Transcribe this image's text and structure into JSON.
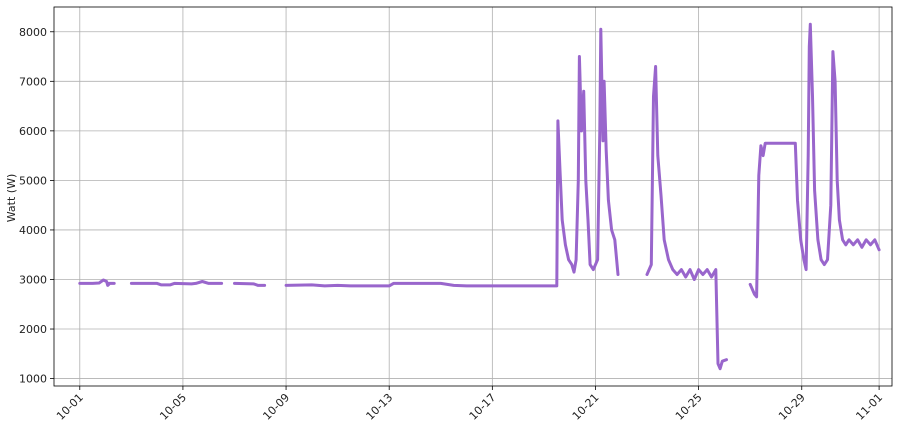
{
  "chart_data": {
    "type": "line",
    "ylabel": "Watt (W)",
    "xlabel": "",
    "title": "",
    "grid": true,
    "line_color": "#9966cc",
    "x_ticks": [
      "10-01",
      "10-05",
      "10-09",
      "10-13",
      "10-17",
      "10-21",
      "10-25",
      "10-29",
      "11-01"
    ],
    "y_ticks": [
      1000,
      2000,
      3000,
      4000,
      5000,
      6000,
      7000,
      8000
    ],
    "xlim": [
      "2023-09-30T00:00",
      "2023-11-01T12:00"
    ],
    "ylim": [
      850,
      8500
    ],
    "segments": [
      [
        [
          "2023-10-01T00:00",
          2920
        ],
        [
          "2023-10-01T12:00",
          2920
        ],
        [
          "2023-10-01T18:00",
          2930
        ],
        [
          "2023-10-01T22:00",
          2990
        ],
        [
          "2023-10-02T01:00",
          2960
        ],
        [
          "2023-10-02T02:00",
          2880
        ],
        [
          "2023-10-02T03:00",
          2900
        ]
      ],
      [
        [
          "2023-10-02T03:00",
          2920
        ],
        [
          "2023-10-02T08:00",
          2920
        ]
      ],
      [
        [
          "2023-10-03T00:00",
          2920
        ],
        [
          "2023-10-04T00:00",
          2920
        ],
        [
          "2023-10-04T04:00",
          2890
        ],
        [
          "2023-10-04T12:00",
          2890
        ],
        [
          "2023-10-04T16:00",
          2920
        ],
        [
          "2023-10-05T08:00",
          2910
        ],
        [
          "2023-10-05T12:00",
          2920
        ],
        [
          "2023-10-05T18:00",
          2960
        ],
        [
          "2023-10-06T00:00",
          2920
        ],
        [
          "2023-10-06T12:00",
          2920
        ]
      ],
      [
        [
          "2023-10-07T00:00",
          2920
        ],
        [
          "2023-10-07T18:00",
          2910
        ],
        [
          "2023-10-07T22:00",
          2880
        ],
        [
          "2023-10-08T04:00",
          2880
        ]
      ],
      [
        [
          "2023-10-09T00:00",
          2880
        ],
        [
          "2023-10-10T00:00",
          2890
        ],
        [
          "2023-10-10T12:00",
          2870
        ],
        [
          "2023-10-11T00:00",
          2880
        ],
        [
          "2023-10-11T12:00",
          2870
        ],
        [
          "2023-10-13T00:00",
          2870
        ],
        [
          "2023-10-13T04:00",
          2920
        ],
        [
          "2023-10-14T12:00",
          2920
        ],
        [
          "2023-10-15T00:00",
          2920
        ],
        [
          "2023-10-15T12:00",
          2880
        ],
        [
          "2023-10-16T00:00",
          2870
        ],
        [
          "2023-10-19T00:00",
          2870
        ],
        [
          "2023-10-19T12:00",
          2870
        ],
        [
          "2023-10-19T13:00",
          6200
        ],
        [
          "2023-10-19T15:00",
          5200
        ],
        [
          "2023-10-19T17:00",
          4200
        ],
        [
          "2023-10-19T20:00",
          3700
        ],
        [
          "2023-10-19T23:00",
          3400
        ],
        [
          "2023-10-20T02:00",
          3300
        ],
        [
          "2023-10-20T04:00",
          3150
        ],
        [
          "2023-10-20T06:00",
          3400
        ],
        [
          "2023-10-20T08:00",
          5000
        ],
        [
          "2023-10-20T09:00",
          7500
        ],
        [
          "2023-10-20T11:00",
          6000
        ],
        [
          "2023-10-20T13:00",
          6800
        ],
        [
          "2023-10-20T15:00",
          5000
        ],
        [
          "2023-10-20T17:00",
          4200
        ],
        [
          "2023-10-20T19:00",
          3300
        ],
        [
          "2023-10-20T22:00",
          3200
        ],
        [
          "2023-10-21T02:00",
          3400
        ],
        [
          "2023-10-21T04:00",
          6000
        ],
        [
          "2023-10-21T05:00",
          8050
        ],
        [
          "2023-10-21T07:00",
          5800
        ],
        [
          "2023-10-21T08:00",
          7000
        ],
        [
          "2023-10-21T10:00",
          5600
        ],
        [
          "2023-10-21T12:00",
          4600
        ],
        [
          "2023-10-21T15:00",
          4000
        ],
        [
          "2023-10-21T18:00",
          3800
        ],
        [
          "2023-10-21T21:00",
          3100
        ]
      ],
      [
        [
          "2023-10-23T00:00",
          3100
        ],
        [
          "2023-10-23T04:00",
          3300
        ],
        [
          "2023-10-23T06:00",
          6700
        ],
        [
          "2023-10-23T08:00",
          7300
        ],
        [
          "2023-10-23T10:00",
          5500
        ],
        [
          "2023-10-23T13:00",
          4700
        ],
        [
          "2023-10-23T16:00",
          3800
        ],
        [
          "2023-10-23T20:00",
          3400
        ],
        [
          "2023-10-24T00:00",
          3200
        ],
        [
          "2023-10-24T04:00",
          3100
        ],
        [
          "2023-10-24T08:00",
          3200
        ],
        [
          "2023-10-24T12:00",
          3050
        ],
        [
          "2023-10-24T16:00",
          3200
        ],
        [
          "2023-10-24T20:00",
          3000
        ],
        [
          "2023-10-25T00:00",
          3200
        ],
        [
          "2023-10-25T04:00",
          3100
        ],
        [
          "2023-10-25T08:00",
          3200
        ],
        [
          "2023-10-25T12:00",
          3050
        ],
        [
          "2023-10-25T16:00",
          3200
        ],
        [
          "2023-10-25T18:00",
          1300
        ],
        [
          "2023-10-25T20:00",
          1200
        ],
        [
          "2023-10-25T22:00",
          1350
        ],
        [
          "2023-10-26T02:00",
          1380
        ]
      ],
      [
        [
          "2023-10-27T00:00",
          2900
        ],
        [
          "2023-10-27T04:00",
          2700
        ],
        [
          "2023-10-27T06:00",
          2650
        ],
        [
          "2023-10-27T08:00",
          5100
        ],
        [
          "2023-10-27T10:00",
          5700
        ],
        [
          "2023-10-27T12:00",
          5500
        ],
        [
          "2023-10-27T14:00",
          5750
        ],
        [
          "2023-10-28T12:00",
          5750
        ],
        [
          "2023-10-28T18:00",
          5750
        ],
        [
          "2023-10-28T20:00",
          4600
        ],
        [
          "2023-10-28T23:00",
          3800
        ],
        [
          "2023-10-29T02:00",
          3400
        ],
        [
          "2023-10-29T04:00",
          3200
        ],
        [
          "2023-10-29T06:00",
          5500
        ],
        [
          "2023-10-29T07:00",
          7700
        ],
        [
          "2023-10-29T08:00",
          8150
        ],
        [
          "2023-10-29T10:00",
          6700
        ],
        [
          "2023-10-29T12:00",
          4800
        ],
        [
          "2023-10-29T15:00",
          3800
        ],
        [
          "2023-10-29T18:00",
          3400
        ],
        [
          "2023-10-29T21:00",
          3300
        ],
        [
          "2023-10-30T00:00",
          3400
        ],
        [
          "2023-10-30T03:00",
          4500
        ],
        [
          "2023-10-30T05:00",
          7600
        ],
        [
          "2023-10-30T07:00",
          7000
        ],
        [
          "2023-10-30T09:00",
          5000
        ],
        [
          "2023-10-30T11:00",
          4200
        ],
        [
          "2023-10-30T14:00",
          3800
        ],
        [
          "2023-10-30T17:00",
          3700
        ],
        [
          "2023-10-30T20:00",
          3800
        ],
        [
          "2023-10-31T00:00",
          3700
        ],
        [
          "2023-10-31T04:00",
          3800
        ],
        [
          "2023-10-31T08:00",
          3650
        ],
        [
          "2023-10-31T12:00",
          3800
        ],
        [
          "2023-10-31T16:00",
          3700
        ],
        [
          "2023-10-31T20:00",
          3800
        ],
        [
          "2023-11-01T00:00",
          3600
        ]
      ]
    ]
  }
}
